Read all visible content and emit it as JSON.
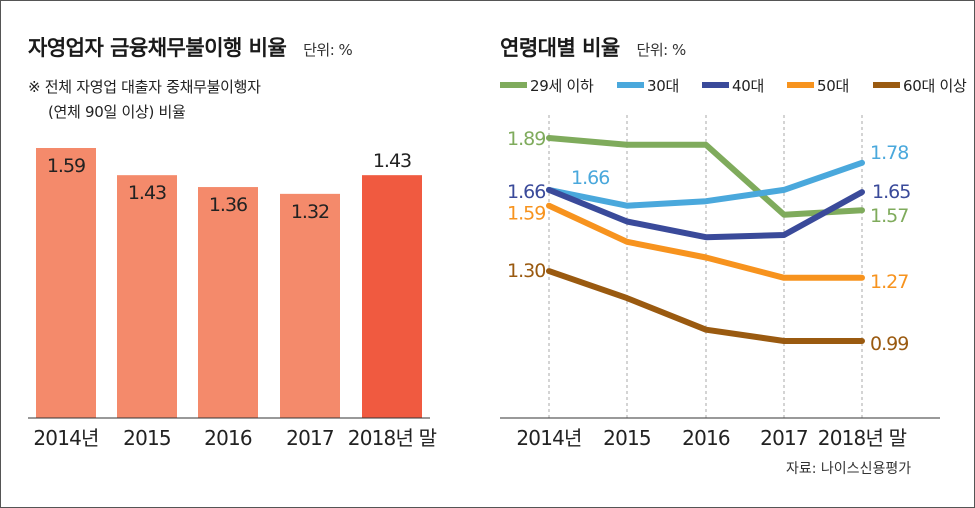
{
  "left_panel": {
    "title": "자영업자 금융채무불이행 비율",
    "unit": "단위: %",
    "note_line1": "※ 전체 자영업 대출자 중채무불이행자",
    "note_line2": "(연체 90일 이상) 비율"
  },
  "right_panel": {
    "title": "연령대별 비율",
    "unit": "단위: %"
  },
  "source": "자료: 나이스신용평가",
  "colors": {
    "bar": "#f48a6b",
    "bar_highlight": "#f05a40",
    "series_29": "#7fab5c",
    "series_30": "#4aa8dc",
    "series_40": "#3a4a9a",
    "series_50": "#f7931e",
    "series_60": "#9a5a10"
  },
  "chart_data": [
    {
      "type": "bar",
      "categories": [
        "2014년",
        "2015",
        "2016",
        "2017",
        "2018년 말"
      ],
      "values": [
        1.59,
        1.43,
        1.36,
        1.32,
        1.43
      ],
      "value_labels": [
        "1.59",
        "1.43",
        "1.36",
        "1.32",
        "1.43"
      ],
      "title": "자영업자 금융채무불이행 비율",
      "ylabel": "",
      "ylim": [
        0,
        1.59
      ],
      "grid": false,
      "highlight_index": 4
    },
    {
      "type": "line",
      "categories": [
        "2014년",
        "2015",
        "2016",
        "2017",
        "2018년 말"
      ],
      "title": "연령대별 비율",
      "ylim": [
        0.99,
        1.89
      ],
      "grid": "vertical-dotted",
      "legend_position": "top",
      "series": [
        {
          "name": "29세 이하",
          "color_key": "series_29",
          "values": [
            1.89,
            1.86,
            1.86,
            1.55,
            1.57
          ],
          "start_label": "1.89",
          "end_label": "1.57"
        },
        {
          "name": "30대",
          "color_key": "series_30",
          "values": [
            1.66,
            1.59,
            1.61,
            1.66,
            1.78
          ],
          "start_label": "1.66",
          "end_label": "1.78"
        },
        {
          "name": "40대",
          "color_key": "series_40",
          "values": [
            1.66,
            1.52,
            1.45,
            1.46,
            1.65
          ],
          "start_label": "1.66",
          "end_label": "1.65"
        },
        {
          "name": "50대",
          "color_key": "series_50",
          "values": [
            1.59,
            1.43,
            1.36,
            1.27,
            1.27
          ],
          "start_label": "1.59",
          "end_label": "1.27"
        },
        {
          "name": "60대 이상",
          "color_key": "series_60",
          "values": [
            1.3,
            1.18,
            1.04,
            0.99,
            0.99
          ],
          "start_label": "1.30",
          "end_label": "0.99"
        }
      ]
    }
  ]
}
